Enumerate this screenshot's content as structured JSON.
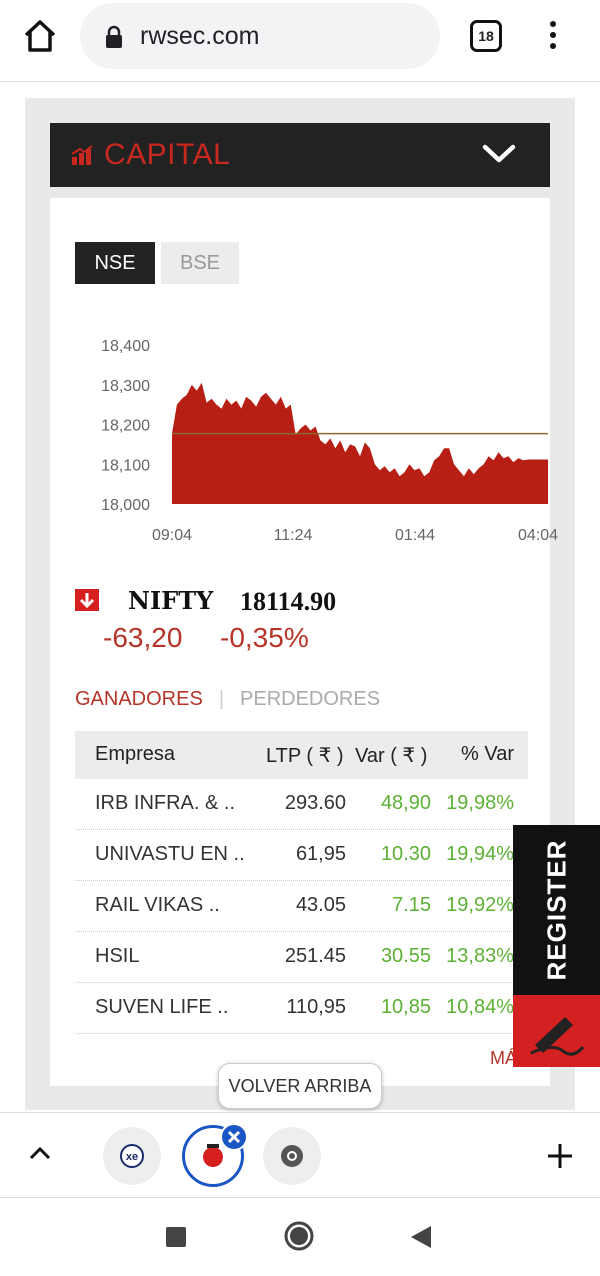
{
  "browser": {
    "url": "rwsec.com",
    "tab_count": "18"
  },
  "section": {
    "title": "CAPITAL"
  },
  "exchange_tabs": [
    "NSE",
    "BSE"
  ],
  "chart_data": {
    "type": "area",
    "x_tick_labels": [
      "09:04",
      "11:24",
      "01:44",
      "04:04"
    ],
    "y_tick_labels": [
      "18,400",
      "18,300",
      "18,200",
      "18,100",
      "18,000"
    ],
    "ylim": [
      18000,
      18400
    ],
    "reference_line": 18177,
    "colors": {
      "fill": "#b81f14",
      "reference": "#8b6a2e"
    },
    "series": [
      {
        "values": [
          18177,
          18250,
          18265,
          18275,
          18300,
          18285,
          18305,
          18255,
          18265,
          18250,
          18240,
          18265,
          18250,
          18260,
          18240,
          18270,
          18260,
          18245,
          18270,
          18280,
          18265,
          18250,
          18270,
          18240,
          18250,
          18175,
          18190,
          18200,
          18185,
          18195,
          18160,
          18150,
          18165,
          18140,
          18160,
          18130,
          18150,
          18145,
          18120,
          18155,
          18140,
          18100,
          18085,
          18095,
          18080,
          18090,
          18070,
          18080,
          18100,
          18085,
          18090,
          18070,
          18080,
          18110,
          18120,
          18140,
          18140,
          18100,
          18085,
          18070,
          18090,
          18075,
          18090,
          18100,
          18120,
          18110,
          18130,
          18115,
          18120,
          18105,
          18115,
          18110,
          18112,
          18112,
          18112,
          18112,
          18112
        ]
      }
    ]
  },
  "index": {
    "name": "NIFTY",
    "value": "18114.90",
    "change": "-63,20",
    "change_pct": "-0,35%"
  },
  "movers_tabs": {
    "gainers": "GANADORES",
    "separator": "|",
    "losers": "PERDEDORES"
  },
  "table": {
    "headers": {
      "company": "Empresa",
      "ltp": "LTP ( ₹ )",
      "var": "Var ( ₹ )",
      "pct": "% Var"
    },
    "rows": [
      {
        "name": "IRB INFRA. & ..",
        "ltp": "293.60",
        "var": "48,90",
        "pct": "19,98%"
      },
      {
        "name": "UNIVASTU EN ..",
        "ltp": "61,95",
        "var": "10.30",
        "pct": "19,94%"
      },
      {
        "name": "RAIL VIKAS ..",
        "ltp": "43.05",
        "var": "7.15",
        "pct": "19,92%"
      },
      {
        "name": "HSIL",
        "ltp": "251.45",
        "var": "30.55",
        "pct": "13,83%"
      },
      {
        "name": "SUVEN LIFE ..",
        "ltp": "110,95",
        "var": "10,85",
        "pct": "10,84%"
      }
    ]
  },
  "more_link": "MÁS",
  "register_label": "REGISTER",
  "back_to_top": "VOLVER ARRIBA"
}
